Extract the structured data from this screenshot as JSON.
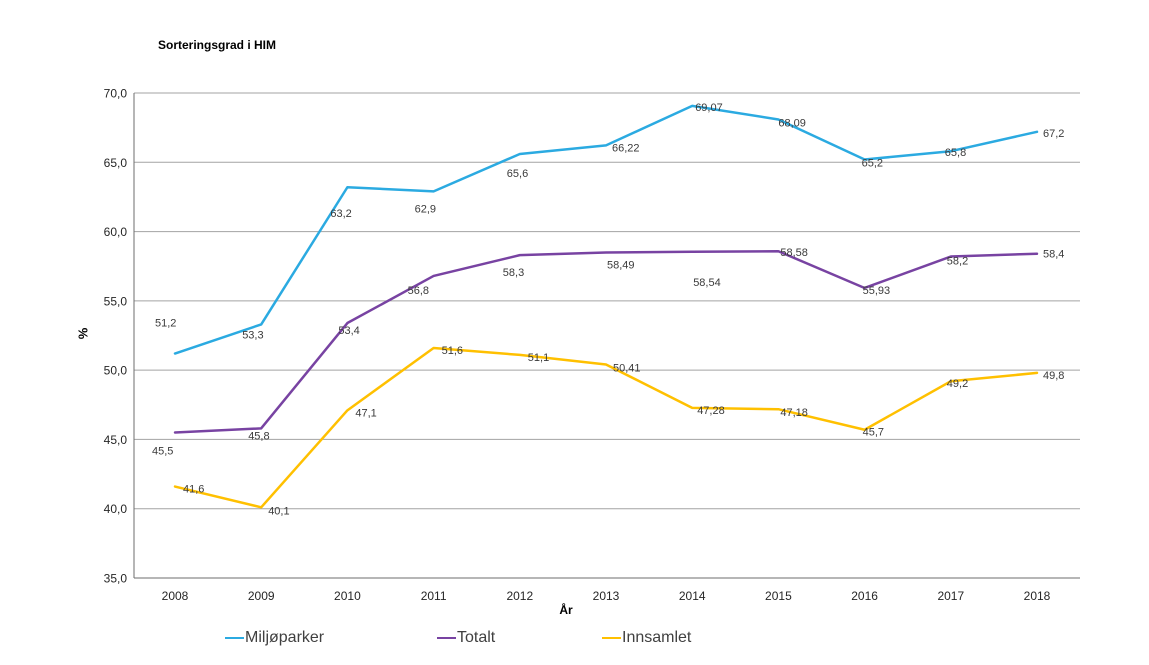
{
  "title": "Sorteringsgrad i HIM",
  "chart_data": {
    "type": "line",
    "title": "Sorteringsgrad i HIM",
    "xlabel": "År",
    "ylabel": "%",
    "x": [
      2008,
      2009,
      2010,
      2011,
      2012,
      2013,
      2014,
      2015,
      2016,
      2017,
      2018
    ],
    "x_tick_labels": [
      "2008",
      "2009",
      "2010",
      "2011",
      "2012",
      "2013",
      "2014",
      "2015",
      "2016",
      "2017",
      "2018"
    ],
    "series": [
      {
        "name": "Miljøparker",
        "color": "#2BAAE1",
        "values": [
          51.2,
          53.3,
          63.2,
          62.9,
          65.6,
          66.22,
          69.07,
          68.09,
          65.2,
          65.8,
          67.2
        ],
        "labels": [
          "51,2",
          "53,3",
          "63,2",
          "62,9",
          "65,6",
          "66,22",
          "69,07",
          "68,09",
          "65,2",
          "65,8",
          "67,2"
        ]
      },
      {
        "name": "Totalt",
        "color": "#7843A2",
        "values": [
          45.5,
          45.8,
          53.4,
          56.8,
          58.3,
          58.49,
          58.54,
          58.58,
          55.93,
          58.2,
          58.4
        ],
        "labels": [
          "45,5",
          "45,8",
          "53,4",
          "56,8",
          "58,3",
          "58,49",
          "58,54",
          "58,58",
          "55,93",
          "58,2",
          "58,4"
        ]
      },
      {
        "name": "Innsamlet",
        "color": "#FFC000",
        "values": [
          41.6,
          40.1,
          47.1,
          51.6,
          51.1,
          50.41,
          47.28,
          47.18,
          45.7,
          49.2,
          49.8
        ],
        "labels": [
          "41,6",
          "40,1",
          "47,1",
          "51,6",
          "51,1",
          "50,41",
          "47,28",
          "47,18",
          "45,7",
          "49,2",
          "49,8"
        ]
      }
    ],
    "ylim": [
      35,
      70
    ],
    "ytick_step": 5,
    "ytick_labels": [
      "35,0",
      "40,0",
      "45,0",
      "50,0",
      "55,0",
      "60,0",
      "65,0",
      "70,0"
    ],
    "grid": true,
    "legend_position": "bottom",
    "colors": {
      "gridline": "#A3A3A3",
      "axis_line": "#6E6E6E",
      "tick_label": "#262626",
      "data_label": "#3A3A3A"
    }
  }
}
